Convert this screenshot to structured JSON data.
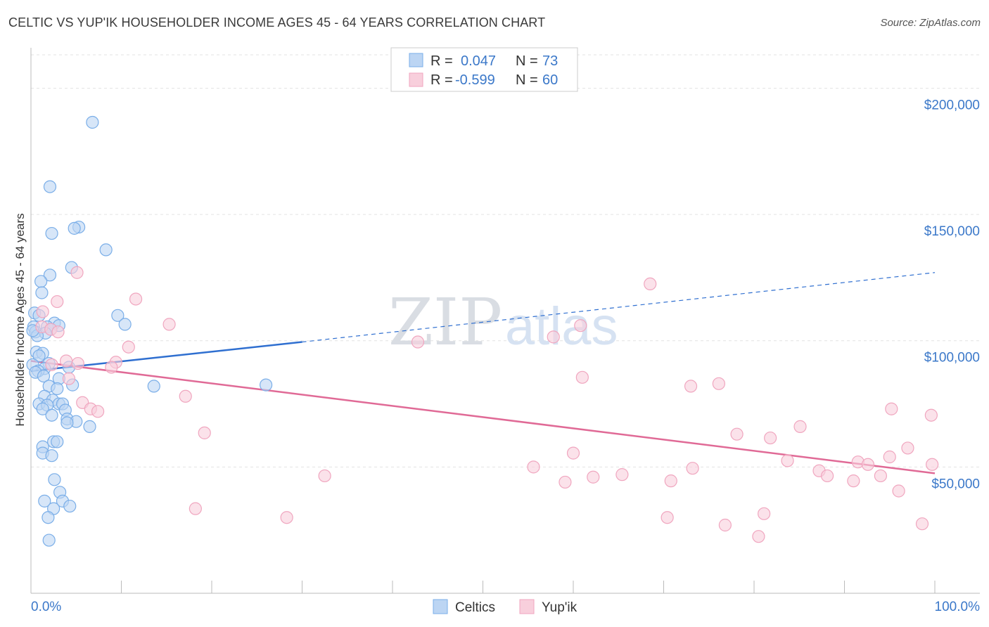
{
  "title": "CELTIC VS YUP'IK HOUSEHOLDER INCOME AGES 45 - 64 YEARS CORRELATION CHART",
  "source": "Source: ZipAtlas.com",
  "watermark": {
    "zip": "ZIP",
    "atlas": "atlas"
  },
  "chart_data": {
    "type": "scatter",
    "xlabel": "",
    "ylabel": "Householder Income Ages 45 - 64 years",
    "xlim": [
      0,
      100
    ],
    "ylim": [
      0,
      216000
    ],
    "x_tick_labels": {
      "left": "0.0%",
      "right": "100.0%"
    },
    "y_ticks": [
      {
        "value": 50000,
        "label": "$50,000"
      },
      {
        "value": 100000,
        "label": "$100,000"
      },
      {
        "value": 150000,
        "label": "$150,000"
      },
      {
        "value": 200000,
        "label": "$200,000"
      }
    ],
    "legend": [
      {
        "r_label": "R =",
        "r_value": "0.047",
        "n_label": "N =",
        "n_value": "73"
      },
      {
        "r_label": "R =",
        "r_value": "-0.599",
        "n_label": "N =",
        "n_value": "60"
      }
    ],
    "series": [
      {
        "name": "Celtics",
        "color": "#7aaee8",
        "fill": "#bcd5f3",
        "line_color": "#2f6fd0",
        "trend": {
          "x0": 0,
          "y0": 88000,
          "x1": 30,
          "y1": 99500,
          "x_dash_end": 100,
          "y_dash_end": 127000
        },
        "points": [
          [
            6.8,
            186500
          ],
          [
            2.1,
            161000
          ],
          [
            5.3,
            145000
          ],
          [
            4.8,
            144500
          ],
          [
            2.3,
            142500
          ],
          [
            8.3,
            136000
          ],
          [
            4.5,
            129000
          ],
          [
            2.1,
            126000
          ],
          [
            1.1,
            123500
          ],
          [
            1.2,
            119000
          ],
          [
            9.6,
            110000
          ],
          [
            0.4,
            111000
          ],
          [
            0.9,
            110000
          ],
          [
            10.4,
            106500
          ],
          [
            2.6,
            107000
          ],
          [
            3.1,
            106000
          ],
          [
            0.3,
            105500
          ],
          [
            1.8,
            105500
          ],
          [
            2.2,
            104500
          ],
          [
            0.5,
            103500
          ],
          [
            1.6,
            103000
          ],
          [
            0.7,
            102000
          ],
          [
            0.2,
            104000
          ],
          [
            0.6,
            95500
          ],
          [
            1.3,
            95000
          ],
          [
            0.9,
            94000
          ],
          [
            2.0,
            91000
          ],
          [
            0.2,
            90500
          ],
          [
            1.5,
            89000
          ],
          [
            0.8,
            88000
          ],
          [
            0.5,
            87500
          ],
          [
            4.2,
            89500
          ],
          [
            1.4,
            86000
          ],
          [
            3.1,
            85000
          ],
          [
            26.0,
            82500
          ],
          [
            13.6,
            82000
          ],
          [
            4.6,
            82500
          ],
          [
            2.0,
            82000
          ],
          [
            2.9,
            81000
          ],
          [
            1.5,
            78000
          ],
          [
            2.4,
            76500
          ],
          [
            0.9,
            75000
          ],
          [
            3.1,
            75000
          ],
          [
            1.8,
            74500
          ],
          [
            3.5,
            75000
          ],
          [
            1.3,
            73000
          ],
          [
            3.8,
            72500
          ],
          [
            2.3,
            70500
          ],
          [
            4.0,
            69000
          ],
          [
            5.0,
            68000
          ],
          [
            4.0,
            67500
          ],
          [
            6.5,
            66000
          ],
          [
            2.5,
            60000
          ],
          [
            2.9,
            60000
          ],
          [
            1.3,
            58000
          ],
          [
            1.3,
            55500
          ],
          [
            2.3,
            54500
          ],
          [
            2.6,
            45000
          ],
          [
            3.2,
            40000
          ],
          [
            1.5,
            36500
          ],
          [
            3.5,
            36500
          ],
          [
            4.3,
            34500
          ],
          [
            2.5,
            33500
          ],
          [
            1.9,
            30000
          ],
          [
            2.0,
            21000
          ]
        ]
      },
      {
        "name": "Yup'ik",
        "color": "#f0a6bf",
        "fill": "#f8cfdc",
        "line_color": "#e06a96",
        "trend": {
          "x0": 0,
          "y0": 92000,
          "x1": 100,
          "y1": 47500
        },
        "points": [
          [
            5.1,
            127000
          ],
          [
            68.5,
            122500
          ],
          [
            2.9,
            115500
          ],
          [
            11.6,
            116500
          ],
          [
            1.3,
            111500
          ],
          [
            15.3,
            106500
          ],
          [
            60.8,
            106000
          ],
          [
            1.2,
            105500
          ],
          [
            2.2,
            104500
          ],
          [
            3.0,
            103500
          ],
          [
            57.8,
            101500
          ],
          [
            42.8,
            99500
          ],
          [
            10.8,
            97500
          ],
          [
            3.9,
            92000
          ],
          [
            5.2,
            91000
          ],
          [
            9.4,
            91500
          ],
          [
            2.3,
            90500
          ],
          [
            8.9,
            89500
          ],
          [
            61.0,
            85500
          ],
          [
            4.2,
            85000
          ],
          [
            76.1,
            83000
          ],
          [
            73.0,
            82000
          ],
          [
            17.1,
            78000
          ],
          [
            5.7,
            75500
          ],
          [
            6.6,
            73000
          ],
          [
            7.4,
            72000
          ],
          [
            95.2,
            73000
          ],
          [
            99.6,
            70500
          ],
          [
            85.1,
            66000
          ],
          [
            19.2,
            63500
          ],
          [
            81.8,
            61500
          ],
          [
            78.1,
            63000
          ],
          [
            97.0,
            57500
          ],
          [
            60.0,
            55500
          ],
          [
            95.0,
            54000
          ],
          [
            83.7,
            52500
          ],
          [
            91.5,
            52000
          ],
          [
            92.6,
            51000
          ],
          [
            99.7,
            51000
          ],
          [
            55.6,
            50000
          ],
          [
            73.2,
            49500
          ],
          [
            87.2,
            48500
          ],
          [
            32.5,
            46500
          ],
          [
            65.4,
            47000
          ],
          [
            62.2,
            46000
          ],
          [
            94.0,
            46500
          ],
          [
            88.1,
            46500
          ],
          [
            59.1,
            44000
          ],
          [
            70.8,
            44500
          ],
          [
            91.0,
            44500
          ],
          [
            96.0,
            40500
          ],
          [
            18.2,
            33500
          ],
          [
            28.3,
            30000
          ],
          [
            70.4,
            30000
          ],
          [
            81.1,
            31500
          ],
          [
            76.8,
            27000
          ],
          [
            98.6,
            27500
          ],
          [
            80.5,
            22500
          ]
        ]
      }
    ]
  }
}
